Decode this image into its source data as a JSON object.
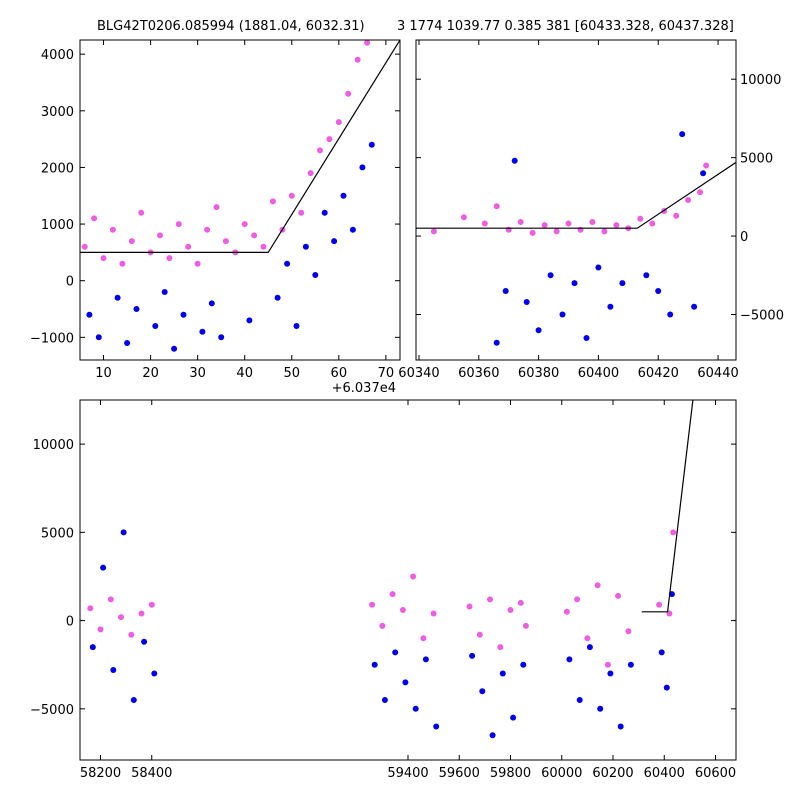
{
  "title_left": "BLG42T0206.085994 (1881.04, 6032.31)",
  "title_right": "3 1774 1039.77 0.385 381 [60433.328, 60437.328]",
  "colors": {
    "series_a": "#ee5ee0",
    "series_b": "#0000ee",
    "model": "#000000"
  },
  "chart_data": [
    {
      "type": "scatter",
      "panel": "top-left",
      "xlim": [
        5,
        73
      ],
      "ylim": [
        -1400,
        4250
      ],
      "x_offset_label": "+6.037e4",
      "xticks": [
        10,
        20,
        30,
        40,
        50,
        60,
        70
      ],
      "xtick_labels": [
        "10",
        "20",
        "30",
        "40",
        "50",
        "60",
        "70"
      ],
      "yticks": [
        -1000,
        0,
        1000,
        2000,
        3000,
        4000
      ],
      "ytick_labels": [
        "−1000",
        "0",
        "1000",
        "2000",
        "3000",
        "4000"
      ],
      "model_line": {
        "x": [
          5,
          45,
          73
        ],
        "y": [
          500,
          500,
          4250
        ]
      },
      "series": [
        {
          "color_key": "series_a",
          "x": [
            6,
            8,
            10,
            12,
            14,
            16,
            18,
            20,
            22,
            24,
            26,
            28,
            30,
            32,
            34,
            36,
            38,
            40,
            42,
            44,
            46,
            48,
            50,
            52,
            54,
            56,
            58,
            60,
            62,
            64,
            66
          ],
          "y": [
            600,
            1100,
            400,
            900,
            300,
            700,
            1200,
            500,
            800,
            400,
            1000,
            600,
            300,
            900,
            1300,
            700,
            500,
            1000,
            800,
            600,
            1400,
            900,
            1500,
            1200,
            1900,
            2300,
            2500,
            2800,
            3300,
            3900,
            4200
          ]
        },
        {
          "color_key": "series_b",
          "x": [
            7,
            9,
            13,
            15,
            17,
            21,
            23,
            25,
            27,
            31,
            33,
            35,
            41,
            47,
            49,
            51,
            53,
            55,
            57,
            59,
            61,
            63,
            65,
            67
          ],
          "y": [
            -600,
            -1000,
            -300,
            -1100,
            -500,
            -800,
            -200,
            -1200,
            -600,
            -900,
            -400,
            -1000,
            -700,
            -300,
            300,
            -800,
            600,
            100,
            1200,
            700,
            1500,
            900,
            2000,
            2400
          ]
        }
      ]
    },
    {
      "type": "scatter",
      "panel": "top-right",
      "xlim": [
        60339,
        60446
      ],
      "ylim": [
        -7900,
        12500
      ],
      "xticks": [
        60340,
        60360,
        60380,
        60400,
        60420,
        60440
      ],
      "xtick_labels": [
        "60340",
        "60360",
        "60380",
        "60400",
        "60420",
        "60440"
      ],
      "yticks": [
        -5000,
        0,
        5000,
        10000
      ],
      "ytick_labels": [
        "−5000",
        "0",
        "5000",
        "10000"
      ],
      "model_line": {
        "x": [
          60339,
          60413,
          60446
        ],
        "y": [
          500,
          500,
          4700
        ]
      },
      "series": [
        {
          "color_key": "series_a",
          "x": [
            60345,
            60355,
            60362,
            60366,
            60370,
            60374,
            60378,
            60382,
            60386,
            60390,
            60394,
            60398,
            60402,
            60406,
            60410,
            60414,
            60418,
            60422,
            60426,
            60430,
            60434,
            60436
          ],
          "y": [
            300,
            1200,
            800,
            1900,
            400,
            900,
            200,
            700,
            300,
            800,
            400,
            900,
            300,
            700,
            500,
            1100,
            800,
            1600,
            1300,
            2300,
            2800,
            4500
          ]
        },
        {
          "color_key": "series_b",
          "x": [
            60366,
            60369,
            60372,
            60376,
            60380,
            60384,
            60388,
            60392,
            60396,
            60400,
            60404,
            60408,
            60416,
            60420,
            60424,
            60428,
            60432,
            60435
          ],
          "y": [
            -6800,
            -3500,
            4800,
            -4200,
            -6000,
            -2500,
            -5000,
            -3000,
            -6500,
            -2000,
            -4500,
            -3000,
            -2500,
            -3500,
            -5000,
            6500,
            -4500,
            4000
          ]
        }
      ]
    },
    {
      "type": "scatter",
      "panel": "bottom",
      "xlim": [
        58120,
        60680
      ],
      "ylim": [
        -7900,
        12500
      ],
      "xticks": [
        58200,
        58400,
        59400,
        59600,
        59800,
        60000,
        60200,
        60400,
        60600
      ],
      "xtick_labels": [
        "58200",
        "58400",
        "59400",
        "59600",
        "59800",
        "60000",
        "60200",
        "60400",
        "60600"
      ],
      "yticks": [
        -5000,
        0,
        5000,
        10000
      ],
      "ytick_labels": [
        "−5000",
        "0",
        "5000",
        "10000"
      ],
      "model_line": {
        "x": [
          60312,
          60413,
          60512
        ],
        "y": [
          500,
          500,
          12500
        ]
      },
      "series": [
        {
          "color_key": "series_a",
          "x": [
            58160,
            58200,
            58240,
            58280,
            58320,
            58360,
            58400,
            59260,
            59300,
            59340,
            59380,
            59420,
            59460,
            59500,
            59640,
            59680,
            59720,
            59760,
            59800,
            59840,
            59860,
            60020,
            60060,
            60100,
            60140,
            60180,
            60220,
            60260,
            60380,
            60420,
            60435
          ],
          "y": [
            700,
            -500,
            1200,
            200,
            -800,
            400,
            900,
            900,
            -300,
            1500,
            600,
            2500,
            -1000,
            400,
            800,
            -800,
            1200,
            -1500,
            600,
            1000,
            -300,
            500,
            1200,
            -1000,
            2000,
            -2500,
            1400,
            -600,
            900,
            400,
            5000
          ]
        },
        {
          "color_key": "series_b",
          "x": [
            58170,
            58210,
            58250,
            58290,
            58330,
            58370,
            58410,
            59270,
            59310,
            59350,
            59390,
            59430,
            59470,
            59510,
            59650,
            59690,
            59730,
            59770,
            59810,
            59850,
            60030,
            60070,
            60110,
            60150,
            60190,
            60230,
            60270,
            60390,
            60410,
            60430
          ],
          "y": [
            -1500,
            3000,
            -2800,
            5000,
            -4500,
            -1200,
            -3000,
            -2500,
            -4500,
            -1800,
            -3500,
            -5000,
            -2200,
            -6000,
            -2000,
            -4000,
            -6500,
            -3000,
            -5500,
            -2500,
            -2200,
            -4500,
            -1500,
            -5000,
            -3000,
            -6000,
            -2500,
            -1800,
            -3800,
            1500
          ]
        }
      ]
    }
  ]
}
